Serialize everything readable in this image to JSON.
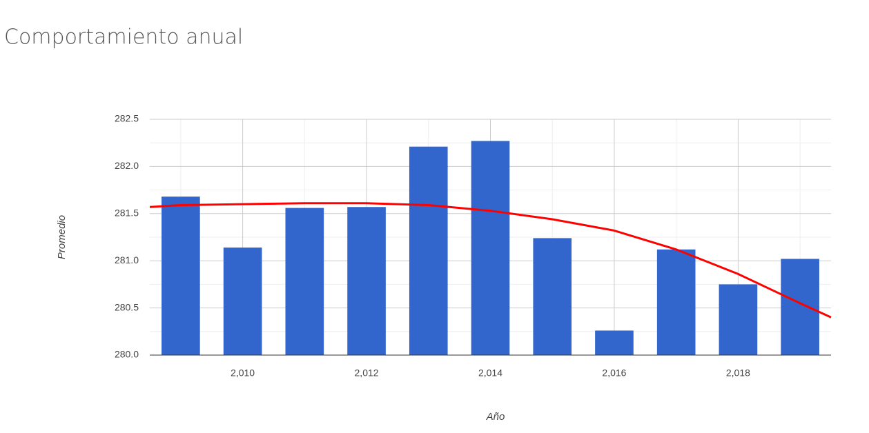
{
  "chart_data": {
    "type": "bar",
    "title": "Comportamiento anual",
    "x_label": "Año",
    "y_label": "Promedio",
    "x": [
      2009,
      2010,
      2011,
      2012,
      2013,
      2014,
      2015,
      2016,
      2017,
      2018,
      2019
    ],
    "values": [
      281.68,
      281.14,
      281.56,
      281.57,
      282.21,
      282.27,
      281.24,
      280.26,
      281.12,
      280.75,
      281.02
    ],
    "color": "#3366cc",
    "trendline": {
      "color": "#ff0000",
      "x": [
        2008.5,
        2009,
        2010,
        2011,
        2012,
        2013,
        2014,
        2015,
        2016,
        2017,
        2018,
        2019,
        2019.5
      ],
      "values": [
        281.57,
        281.59,
        281.6,
        281.61,
        281.61,
        281.59,
        281.53,
        281.44,
        281.32,
        281.12,
        280.86,
        280.55,
        280.4
      ]
    },
    "xlim": [
      2008.5,
      2019.5
    ],
    "xticks": [
      {
        "value": 2010,
        "label": "2,010"
      },
      {
        "value": 2012,
        "label": "2,012"
      },
      {
        "value": 2014,
        "label": "2,014"
      },
      {
        "value": 2016,
        "label": "2,016"
      },
      {
        "value": 2018,
        "label": "2,018"
      }
    ],
    "ylim": [
      280,
      282.5
    ],
    "yticks": [
      {
        "value": 280,
        "label": "280.0"
      },
      280.5,
      {
        "value": 281,
        "label": "281.0"
      },
      281.5,
      {
        "value": 282,
        "label": "282.0"
      },
      282.5
    ],
    "grid": true
  }
}
